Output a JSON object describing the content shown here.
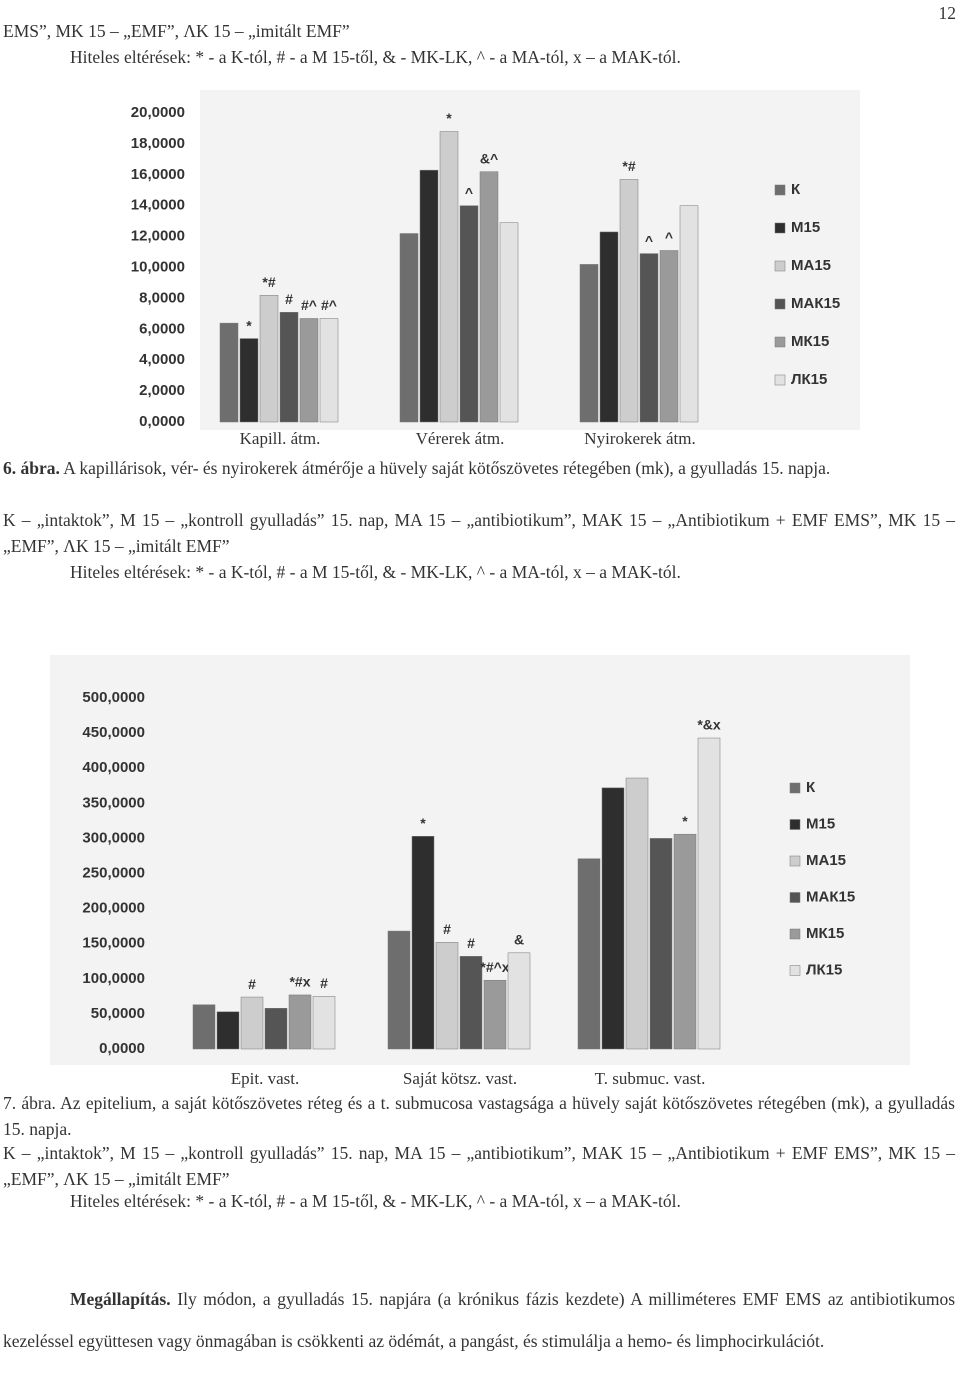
{
  "page_number": "12",
  "continuation": {
    "legend": "EMS”, MK 15 – „EMF”, ΛK 15 – „imitált EMF”",
    "significance": "Hiteles eltérések: * - a K-tól, # - a M 15-től, & - MK-LK, ^ - a MA-tól, x – a MAK-tól."
  },
  "chart_data": [
    {
      "type": "bar",
      "categories": [
        "Kapill. átm.",
        "Vérerek átm.",
        "Nyirokerek átm."
      ],
      "ylim": [
        0,
        20
      ],
      "yticks": [
        {
          "value": 0,
          "label": "0,0000"
        },
        {
          "value": 2,
          "label": "2,0000"
        },
        {
          "value": 4,
          "label": "4,0000"
        },
        {
          "value": 6,
          "label": "6,0000"
        },
        {
          "value": 8,
          "label": "8,0000"
        },
        {
          "value": 10,
          "label": "10,0000"
        },
        {
          "value": 12,
          "label": "12,0000"
        },
        {
          "value": 14,
          "label": "14,0000"
        },
        {
          "value": 16,
          "label": "16,0000"
        },
        {
          "value": 18,
          "label": "18,0000"
        },
        {
          "value": 20,
          "label": "20,0000"
        }
      ],
      "grid": false,
      "legend": "right",
      "series": [
        {
          "name": "К",
          "color": "#6e6e6e",
          "values": [
            6.4,
            12.2,
            10.2
          ],
          "annotations": [
            null,
            null,
            null
          ]
        },
        {
          "name": "М15",
          "color": "#2e2e2e",
          "values": [
            5.4,
            16.3,
            12.3
          ],
          "annotations": [
            "*",
            null,
            null
          ]
        },
        {
          "name": "МА15",
          "color": "#cdcdcd",
          "values": [
            8.2,
            18.8,
            15.7
          ],
          "annotations": [
            "*#",
            "*",
            "*#"
          ]
        },
        {
          "name": "МАК15",
          "color": "#555555",
          "values": [
            7.1,
            14.0,
            10.9
          ],
          "annotations": [
            "#",
            "^",
            "^"
          ]
        },
        {
          "name": "МК15",
          "color": "#9a9a9a",
          "values": [
            6.7,
            16.2,
            11.1
          ],
          "annotations": [
            "#^",
            "&^",
            "^"
          ]
        },
        {
          "name": "ЛК15",
          "color": "#e2e2e2",
          "values": [
            6.7,
            12.9,
            14.0
          ],
          "annotations": [
            "#^",
            null,
            null
          ]
        }
      ]
    },
    {
      "type": "bar",
      "categories": [
        "Epit. vast.",
        "Saját kötsz. vast.",
        "T. submuc. vast."
      ],
      "ylim": [
        0,
        500
      ],
      "yticks": [
        {
          "value": 0,
          "label": "0,0000"
        },
        {
          "value": 50,
          "label": "50,0000"
        },
        {
          "value": 100,
          "label": "100,0000"
        },
        {
          "value": 150,
          "label": "150,0000"
        },
        {
          "value": 200,
          "label": "200,0000"
        },
        {
          "value": 250,
          "label": "250,0000"
        },
        {
          "value": 300,
          "label": "300,0000"
        },
        {
          "value": 350,
          "label": "350,0000"
        },
        {
          "value": 400,
          "label": "400,0000"
        },
        {
          "value": 450,
          "label": "450,0000"
        },
        {
          "value": 500,
          "label": "500,0000"
        }
      ],
      "grid": false,
      "legend": "right",
      "series": [
        {
          "name": "К",
          "color": "#6e6e6e",
          "values": [
            63,
            168,
            271
          ],
          "annotations": [
            null,
            null,
            null
          ]
        },
        {
          "name": "М15",
          "color": "#2e2e2e",
          "values": [
            53,
            303,
            372
          ],
          "annotations": [
            null,
            "*",
            null
          ]
        },
        {
          "name": "МА15",
          "color": "#cdcdcd",
          "values": [
            74,
            152,
            386
          ],
          "annotations": [
            "#",
            "#",
            null
          ]
        },
        {
          "name": "МАК15",
          "color": "#555555",
          "values": [
            58,
            132,
            300
          ],
          "annotations": [
            null,
            "#",
            null
          ]
        },
        {
          "name": "МК15",
          "color": "#9a9a9a",
          "values": [
            77,
            98,
            306
          ],
          "annotations": [
            "*#x",
            "*#^x",
            "*"
          ]
        },
        {
          "name": "ЛК15",
          "color": "#e2e2e2",
          "values": [
            75,
            137,
            443
          ],
          "annotations": [
            "#",
            "&",
            "*&x"
          ]
        }
      ]
    }
  ],
  "figure_6": {
    "label": "6. ábra.",
    "caption": "A kapillárisok, vér- és nyirokerek átmérője a hüvely saját kötőszövetes rétegében (mk), a gyulladás 15. napja.",
    "legend": "K – „intaktok”, M 15 – „kontroll gyulladás” 15. nap, MA 15 – „antibiotikum”, MAK 15 – „Antibiotikum + EMF EMS”, MK 15 – „EMF”, ΛK 15 – „imitált EMF”",
    "significance": "Hiteles eltérések: * - a K-tól, # - a M 15-től, & - MK-LK, ^ - a MA-tól, x – a MAK-tól."
  },
  "figure_7": {
    "label": "7. ábra.",
    "caption": "Az epitelium, a saját kötőszövetes réteg és a t. submucosa vastagsága a hüvely saját kötőszövetes rétegében (mk), a gyulladás 15. napja.",
    "legend": "K – „intaktok”, M 15 – „kontroll gyulladás” 15. nap, MA 15 – „antibiotikum”, MAK 15 – „Antibiotikum + EMF EMS”, MK 15 – „EMF”, ΛK 15 – „imitált EMF”",
    "significance": "Hiteles eltérések: * - a K-tól, # - a M 15-től, & - MK-LK, ^ - a MA-tól, x – a MAK-tól."
  },
  "conclusion": {
    "label": "Megállapítás.",
    "text": "Ily módon, a gyulladás 15. napjára (a krónikus fázis kezdete) A milliméteres EMF EMS az antibiotikumos kezeléssel együttesen vagy önmagában is csökkenti az ödémát, a pangást, és stimulálja a hemo- és limphocirkulációt."
  }
}
